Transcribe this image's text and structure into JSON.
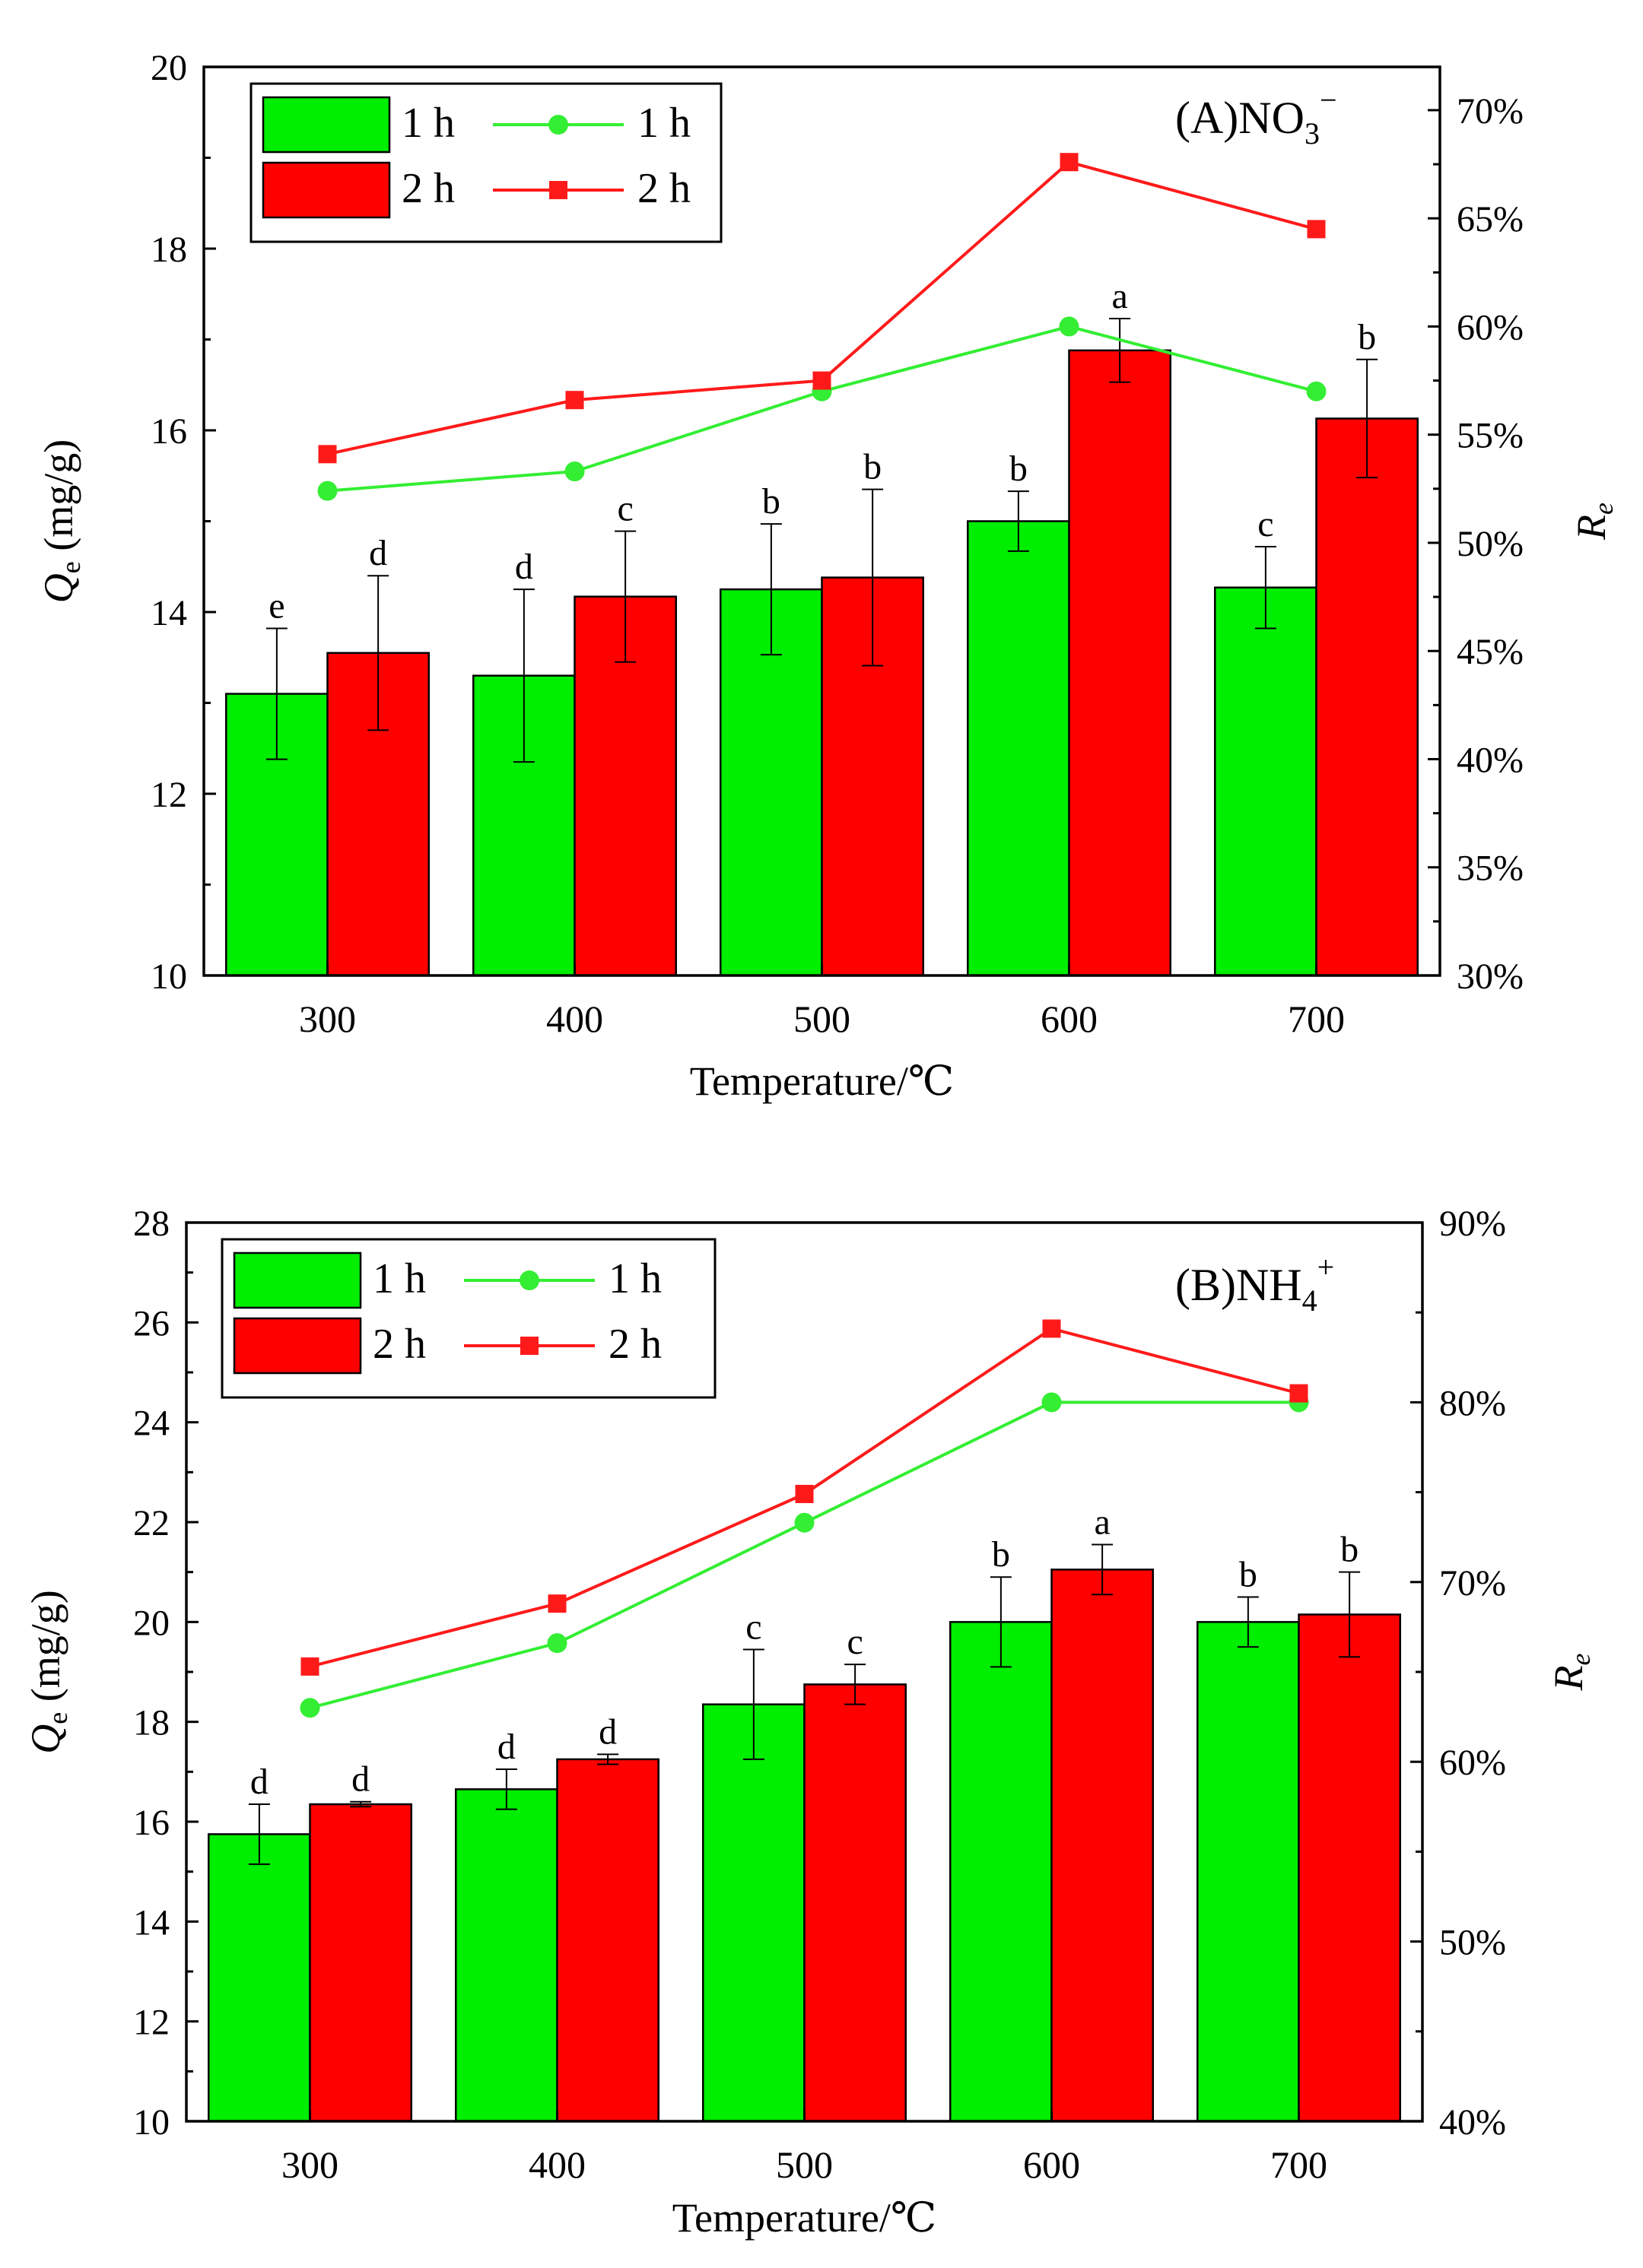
{
  "colors": {
    "green": "#00EE00",
    "red": "#FF0000",
    "line_green": "#33EE33",
    "line_red": "#FF1A1A",
    "axis": "#000000"
  },
  "chart_data": [
    {
      "type": "bar",
      "panel_label": "(A)NO",
      "panel_sub": "3",
      "panel_sup": "−",
      "title": "(A)NO3−",
      "categories": [
        "300",
        "400",
        "500",
        "600",
        "700"
      ],
      "xlabel": "Temperature/℃",
      "ylabel_main": "Q",
      "ylabel_sub": "e",
      "ylabel_unit": " (mg/g)",
      "ylabel": "Qe (mg/g)",
      "ylim": [
        10,
        20
      ],
      "yticks": [
        10,
        12,
        14,
        16,
        18,
        20
      ],
      "y2label": "Re",
      "y2label_main": "R",
      "y2label_sub": "e",
      "y2lim": [
        30,
        72
      ],
      "y2ticks": [
        30,
        35,
        40,
        45,
        50,
        55,
        60,
        65,
        70
      ],
      "y2tick_labels": [
        "30%",
        "35%",
        "40%",
        "45%",
        "50%",
        "55%",
        "60%",
        "65%",
        "70%"
      ],
      "legend": {
        "position": "top-left",
        "bar_labels": [
          "1 h",
          "2 h"
        ],
        "line_labels": [
          "1 h",
          "2 h"
        ]
      },
      "series": [
        {
          "name": "1 h",
          "kind": "bar",
          "color": "#00EE00",
          "values": [
            13.1,
            13.3,
            14.25,
            15.0,
            14.27
          ],
          "errors": [
            0.72,
            0.95,
            0.72,
            0.33,
            0.45
          ],
          "letters": [
            "e",
            "d",
            "b",
            "b",
            "c"
          ]
        },
        {
          "name": "2 h",
          "kind": "bar",
          "color": "#FF0000",
          "values": [
            13.55,
            14.17,
            14.38,
            16.88,
            16.13
          ],
          "errors": [
            0.85,
            0.72,
            0.97,
            0.35,
            0.65
          ],
          "letters": [
            "d",
            "c",
            "b",
            "a",
            "b"
          ]
        },
        {
          "name": "1 h",
          "kind": "line",
          "axis": "right",
          "marker": "circle",
          "color": "#33EE33",
          "values": [
            52.4,
            53.3,
            57.0,
            60.0,
            57.0
          ]
        },
        {
          "name": "2 h",
          "kind": "line",
          "axis": "right",
          "marker": "square",
          "color": "#FF1A1A",
          "values": [
            54.1,
            56.6,
            57.5,
            67.6,
            64.5
          ]
        }
      ]
    },
    {
      "type": "bar",
      "panel_label": "(B)NH",
      "panel_sub": "4",
      "panel_sup": "+",
      "title": "(B)NH4+",
      "categories": [
        "300",
        "400",
        "500",
        "600",
        "700"
      ],
      "xlabel": "Temperature/℃",
      "ylabel_main": "Q",
      "ylabel_sub": "e",
      "ylabel_unit": " (mg/g)",
      "ylabel": "Qe (mg/g)",
      "ylim": [
        10,
        28
      ],
      "yticks": [
        10,
        12,
        14,
        16,
        18,
        20,
        22,
        24,
        26,
        28
      ],
      "y2label": "Re",
      "y2label_main": "R",
      "y2label_sub": "e",
      "y2lim": [
        40,
        90
      ],
      "y2ticks": [
        40,
        50,
        60,
        70,
        80,
        90
      ],
      "y2tick_labels": [
        "40%",
        "50%",
        "60%",
        "70%",
        "80%",
        "90%"
      ],
      "legend": {
        "position": "top-left",
        "bar_labels": [
          "1 h",
          "2 h"
        ],
        "line_labels": [
          "1 h",
          "2 h"
        ]
      },
      "series": [
        {
          "name": "1 h",
          "kind": "bar",
          "color": "#00EE00",
          "values": [
            15.75,
            16.65,
            18.35,
            20.0,
            20.0
          ],
          "errors": [
            0.6,
            0.4,
            1.1,
            0.9,
            0.5
          ],
          "letters": [
            "d",
            "d",
            "c",
            "b",
            "b"
          ]
        },
        {
          "name": "2 h",
          "kind": "bar",
          "color": "#FF0000",
          "values": [
            16.35,
            17.25,
            18.75,
            21.05,
            20.15
          ],
          "errors": [
            0.05,
            0.1,
            0.4,
            0.5,
            0.85
          ],
          "letters": [
            "d",
            "d",
            "c",
            "a",
            "b"
          ]
        },
        {
          "name": "1 h",
          "kind": "line",
          "axis": "right",
          "marker": "circle",
          "color": "#33EE33",
          "values": [
            63.0,
            66.6,
            73.3,
            80.0,
            80.0
          ]
        },
        {
          "name": "2 h",
          "kind": "line",
          "axis": "right",
          "marker": "square",
          "color": "#FF1A1A",
          "values": [
            65.3,
            68.8,
            74.9,
            84.1,
            80.5
          ]
        }
      ]
    }
  ]
}
